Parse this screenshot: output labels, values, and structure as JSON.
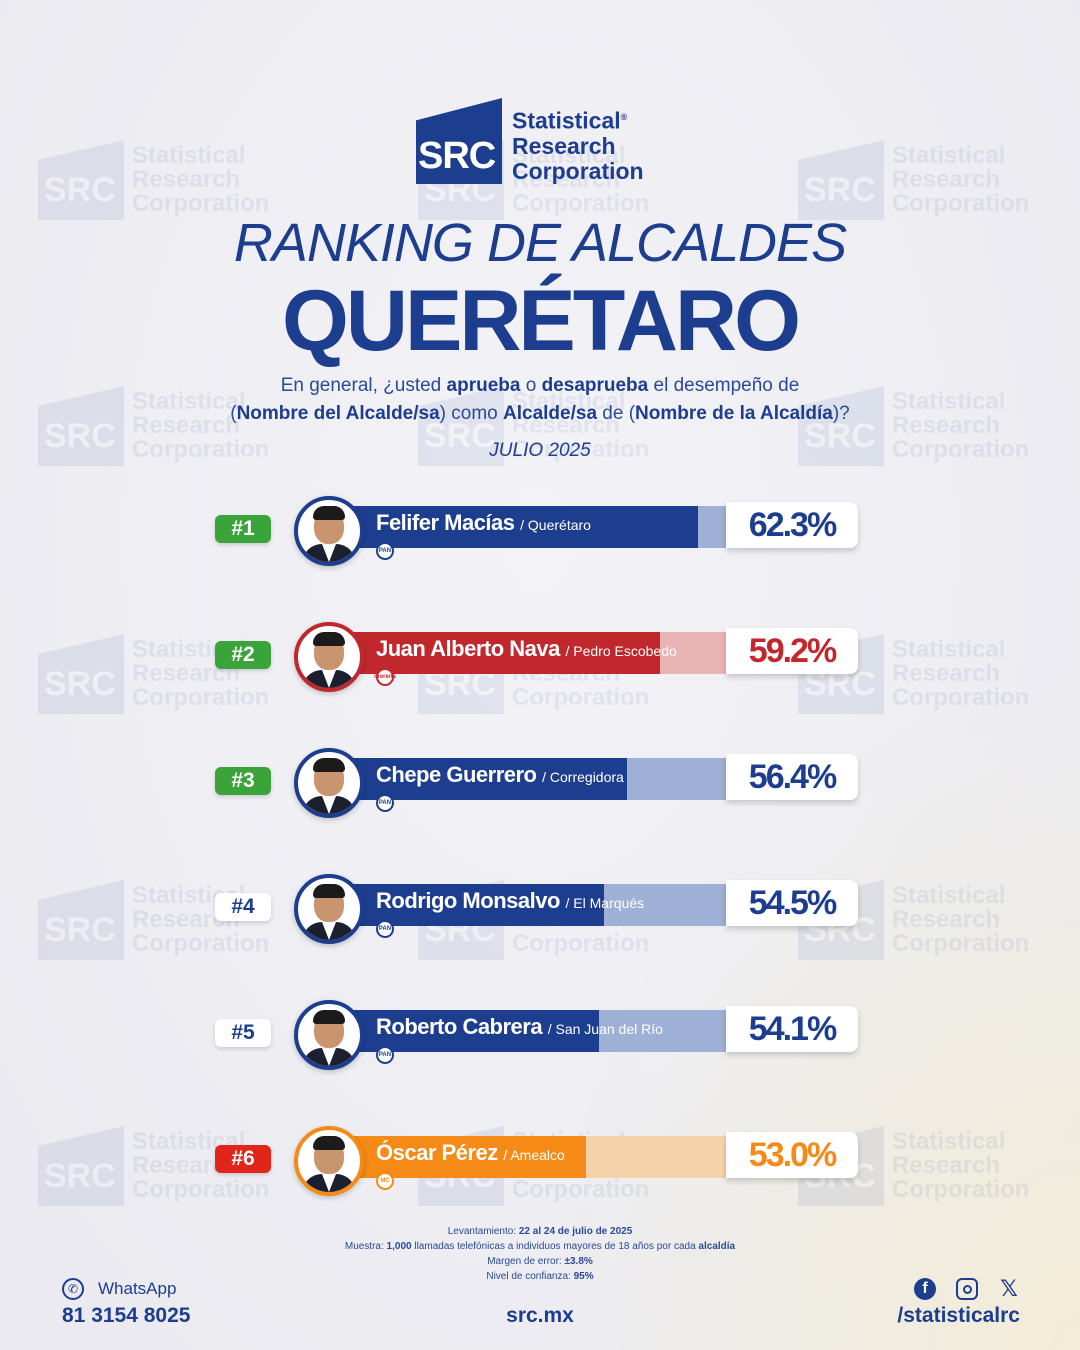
{
  "brand": {
    "mark": "SRC",
    "line1": "Statistical",
    "line2": "Research",
    "line3": "Corporation",
    "reg": "®"
  },
  "title_line1": "RANKING DE ALCALDES",
  "title_line2": "QUERÉTARO",
  "question": {
    "p1": "En general, ¿usted ",
    "b1": "aprueba",
    "p2": " o ",
    "b2": "desaprueba",
    "p3": " el desempeño de",
    "p4": "(",
    "b3": "Nombre del Alcalde/sa",
    "p5": ") como ",
    "b4": "Alcalde/sa",
    "p6": " de (",
    "b5": "Nombre de la Alcaldía",
    "p7": ")?"
  },
  "date": "JULIO 2025",
  "colors": {
    "pan_blue": "#1d3d8f",
    "pan_light": "#9fb0d6",
    "morena_red": "#c0282d",
    "morena_light": "#e8b4b4",
    "mc_orange": "#f58a16",
    "mc_light": "#f6d2aa",
    "green": "#3aa43a",
    "red": "#e0251b"
  },
  "chart_data": {
    "type": "bar",
    "categories": [
      "Felifer Macías",
      "Juan Alberto Nava",
      "Chepe Guerrero",
      "Rodrigo Monsalvo",
      "Roberto Cabrera",
      "Óscar Pérez"
    ],
    "values": [
      62.3,
      59.2,
      56.4,
      54.5,
      54.1,
      53.0
    ],
    "rows": [
      {
        "rank": "#1",
        "name": "Felifer Macías",
        "place": "/ Querétaro",
        "pct": "62.3%",
        "value": 62.3,
        "party": "PAN",
        "rank_color": "green",
        "bar": "#1d3d8f",
        "track": "#9fb0d6",
        "text_color": "#1d3d8f",
        "border": "#1d3d8f"
      },
      {
        "rank": "#2",
        "name": "Juan Alberto Nava",
        "place": "/ Pedro Escobedo",
        "pct": "59.2%",
        "value": 59.2,
        "party": "morena",
        "rank_color": "green",
        "bar": "#c0282d",
        "track": "#e8b4b4",
        "text_color": "#c0282d",
        "border": "#c0282d"
      },
      {
        "rank": "#3",
        "name": "Chepe Guerrero",
        "place": "/ Corregidora",
        "pct": "56.4%",
        "value": 56.4,
        "party": "PAN",
        "rank_color": "green",
        "bar": "#1d3d8f",
        "track": "#9fb0d6",
        "text_color": "#1d3d8f",
        "border": "#1d3d8f"
      },
      {
        "rank": "#4",
        "name": "Rodrigo Monsalvo",
        "place": "/ El Marqués",
        "pct": "54.5%",
        "value": 54.5,
        "party": "PAN",
        "rank_color": "white",
        "bar": "#1d3d8f",
        "track": "#9fb0d6",
        "text_color": "#1d3d8f",
        "border": "#1d3d8f"
      },
      {
        "rank": "#5",
        "name": "Roberto Cabrera",
        "place": "/ San Juan del Río",
        "pct": "54.1%",
        "value": 54.1,
        "party": "PAN",
        "rank_color": "white",
        "bar": "#1d3d8f",
        "track": "#9fb0d6",
        "text_color": "#1d3d8f",
        "border": "#1d3d8f"
      },
      {
        "rank": "#6",
        "name": "Óscar Pérez",
        "place": "/ Amealco",
        "pct": "53.0%",
        "value": 53.0,
        "party": "MC",
        "rank_color": "red",
        "bar": "#f58a16",
        "track": "#f6d2aa",
        "text_color": "#f58a16",
        "border": "#f58a16"
      }
    ]
  },
  "methodology": {
    "l1a": "Levantamiento: ",
    "l1b": "22 al 24 de julio de 2025",
    "l2a": "Muestra: ",
    "l2b": "1,000",
    "l2c": " llamadas telefónicas a individuos mayores de 18 años por cada ",
    "l2d": "alcaldía",
    "l3a": "Margen de error: ",
    "l3b": "±3.8%",
    "l4a": "Nivel de confianza: ",
    "l4b": "95%"
  },
  "footer": {
    "whatsapp_label": "WhatsApp",
    "whatsapp_number": "81 3154 8025",
    "site": "src.mx",
    "handle": "/statisticalrc",
    "icons": [
      "whatsapp-icon",
      "facebook-icon",
      "instagram-icon",
      "x-icon"
    ]
  }
}
